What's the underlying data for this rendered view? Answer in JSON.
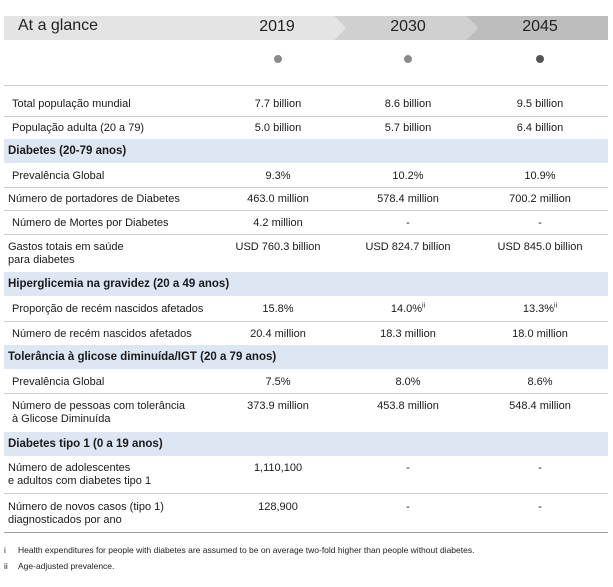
{
  "banner": {
    "title": "At a glance",
    "years": [
      "2019",
      "2030",
      "2045"
    ]
  },
  "general": [
    {
      "label": "Total população mundial",
      "values": [
        "7.7 billion",
        "8.6 billion",
        "9.5 billion"
      ]
    },
    {
      "label": "População adulta (20 a 79)",
      "values": [
        "5.0 billion",
        "5.7 billion",
        "6.4 billion"
      ]
    }
  ],
  "sections": [
    {
      "title": "Diabetes (20-79 anos)",
      "rows": [
        {
          "label": "Prevalência Global",
          "values": [
            "9.3%",
            "10.2%",
            "10.9%"
          ]
        },
        {
          "label": "Número de portadores de Diabetes",
          "values": [
            "463.0 million",
            "578.4 million",
            "700.2 million"
          ]
        },
        {
          "label": "Número de Mortes por Diabetes",
          "values": [
            "4.2 million",
            "-",
            "-"
          ]
        },
        {
          "label": "Gastos totais em saúde",
          "label2": "para diabetes",
          "values": [
            "USD 760.3 billion",
            "USD 824.7 billion",
            "USD 845.0 billion"
          ]
        }
      ]
    },
    {
      "title": "Hiperglicemia na gravidez (20 a 49 anos)",
      "rows": [
        {
          "label": "Proporção de recém nascidos afetados",
          "values": [
            "15.8%",
            "14.0%",
            "13.3%"
          ],
          "sups": [
            "",
            "ii",
            "ii"
          ]
        },
        {
          "label": "Número de recém nascidos afetados",
          "values": [
            "20.4 million",
            "18.3 million",
            "18.0 million"
          ]
        }
      ]
    },
    {
      "title": "Tolerância à glicose diminuída/IGT (20 a 79 anos)",
      "rows": [
        {
          "label": "Prevalência Global",
          "values": [
            "7.5%",
            "8.0%",
            "8.6%"
          ]
        },
        {
          "label": "Número de pessoas com tolerância",
          "label2": "à Glicose Diminuída",
          "values": [
            "373.9 million",
            "453.8 million",
            "548.4 million"
          ]
        }
      ]
    },
    {
      "title": "Diabetes tipo 1 (0 a 19 anos)",
      "rows": [
        {
          "label": "Número de adolescentes",
          "label2": "e adultos com diabetes tipo 1",
          "values": [
            "1,110,100",
            "-",
            "-"
          ]
        },
        {
          "label": "Número de novos casos (tipo 1)",
          "label2": "diagnosticados por ano",
          "values": [
            "128,900",
            "-",
            "-"
          ]
        }
      ]
    }
  ],
  "footnotes": [
    {
      "marker": "i",
      "text": "Health expenditures for people with diabetes are assumed to be on average two-fold higher than people without diabetes."
    },
    {
      "marker": "ii",
      "text": "Age-adjusted prevalence."
    }
  ]
}
